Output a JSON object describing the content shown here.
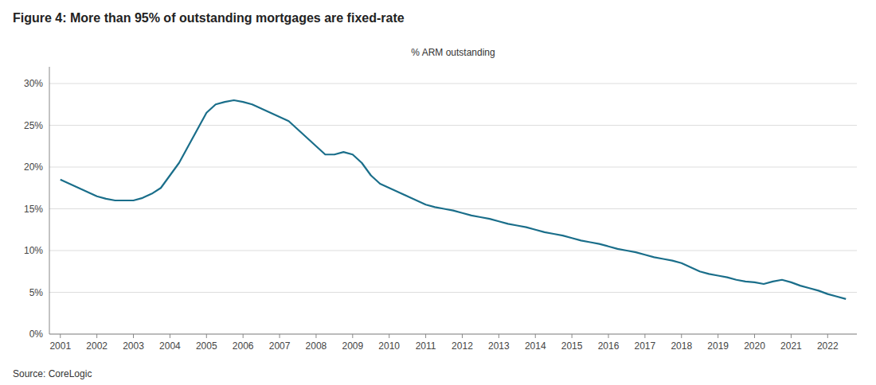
{
  "chart_data": {
    "type": "line",
    "title": "Figure 4: More than 95% of outstanding mortgages are fixed-rate",
    "ylabel": "% ARM outstanding",
    "annotations": [
      "Source: CoreLogic"
    ],
    "color": "#1a6e8a",
    "grid": true,
    "ylim": [
      0,
      32
    ],
    "yticks": [
      {
        "value": 0,
        "label": "0%"
      },
      {
        "value": 5,
        "label": "5%"
      },
      {
        "value": 10,
        "label": "10%"
      },
      {
        "value": 15,
        "label": "15%"
      },
      {
        "value": 20,
        "label": "20%"
      },
      {
        "value": 25,
        "label": "25%"
      },
      {
        "value": 30,
        "label": "30%"
      }
    ],
    "xlim": [
      2000.7,
      2022.8
    ],
    "xticks": [
      2001,
      2002,
      2003,
      2004,
      2005,
      2006,
      2007,
      2008,
      2009,
      2010,
      2011,
      2012,
      2013,
      2014,
      2015,
      2016,
      2017,
      2018,
      2019,
      2020,
      2021,
      2022
    ],
    "x": [
      2001.0,
      2001.25,
      2001.5,
      2001.75,
      2002.0,
      2002.25,
      2002.5,
      2002.75,
      2003.0,
      2003.25,
      2003.5,
      2003.75,
      2004.0,
      2004.25,
      2004.5,
      2004.75,
      2005.0,
      2005.25,
      2005.5,
      2005.75,
      2006.0,
      2006.25,
      2006.5,
      2006.75,
      2007.0,
      2007.25,
      2007.5,
      2007.75,
      2008.0,
      2008.25,
      2008.5,
      2008.75,
      2009.0,
      2009.25,
      2009.5,
      2009.75,
      2010.0,
      2010.25,
      2010.5,
      2010.75,
      2011.0,
      2011.25,
      2011.5,
      2011.75,
      2012.0,
      2012.25,
      2012.5,
      2012.75,
      2013.0,
      2013.25,
      2013.5,
      2013.75,
      2014.0,
      2014.25,
      2014.5,
      2014.75,
      2015.0,
      2015.25,
      2015.5,
      2015.75,
      2016.0,
      2016.25,
      2016.5,
      2016.75,
      2017.0,
      2017.25,
      2017.5,
      2017.75,
      2018.0,
      2018.25,
      2018.5,
      2018.75,
      2019.0,
      2019.25,
      2019.5,
      2019.75,
      2020.0,
      2020.25,
      2020.5,
      2020.75,
      2021.0,
      2021.25,
      2021.5,
      2021.75,
      2022.0,
      2022.25,
      2022.5
    ],
    "values": [
      18.5,
      18.0,
      17.5,
      17.0,
      16.5,
      16.2,
      16.0,
      16.0,
      16.0,
      16.3,
      16.8,
      17.5,
      19.0,
      20.5,
      22.5,
      24.5,
      26.5,
      27.5,
      27.8,
      28.0,
      27.8,
      27.5,
      27.0,
      26.5,
      26.0,
      25.5,
      24.5,
      23.5,
      22.5,
      21.5,
      21.5,
      21.8,
      21.5,
      20.5,
      19.0,
      18.0,
      17.5,
      17.0,
      16.5,
      16.0,
      15.5,
      15.2,
      15.0,
      14.8,
      14.5,
      14.2,
      14.0,
      13.8,
      13.5,
      13.2,
      13.0,
      12.8,
      12.5,
      12.2,
      12.0,
      11.8,
      11.5,
      11.2,
      11.0,
      10.8,
      10.5,
      10.2,
      10.0,
      9.8,
      9.5,
      9.2,
      9.0,
      8.8,
      8.5,
      8.0,
      7.5,
      7.2,
      7.0,
      6.8,
      6.5,
      6.3,
      6.2,
      6.0,
      6.3,
      6.5,
      6.2,
      5.8,
      5.5,
      5.2,
      4.8,
      4.5,
      4.2
    ]
  }
}
